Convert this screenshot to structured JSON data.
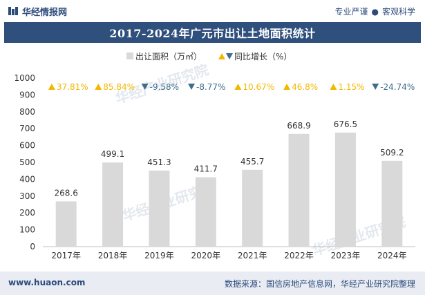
{
  "header": {
    "brand": "华经情报网",
    "tagline_left": "专业严谨",
    "tagline_right": "客观科学"
  },
  "footer": {
    "site": "www.huaon.com",
    "source": "数据来源：国信房地产信息网，华经产业研究院整理"
  },
  "watermark": "华经产业研究院",
  "colors": {
    "bar": "#d9d9d9",
    "up": "#f2b800",
    "down": "#3f6e8c",
    "title_bg": "#2f4f7c",
    "accent": "#2c4a7a"
  },
  "chart_data": {
    "type": "bar",
    "title": "2017-2024年广元市出让土地面积统计",
    "legend": {
      "bar_label": "出让面积（万㎡）",
      "growth_label": "同比增长（%）",
      "position": "top"
    },
    "categories": [
      "2017年",
      "2018年",
      "2019年",
      "2020年",
      "2021年",
      "2022年",
      "2023年",
      "2024年"
    ],
    "values": [
      268.6,
      499.1,
      451.3,
      411.7,
      455.7,
      668.9,
      676.5,
      509.2
    ],
    "value_labels": [
      "268.6",
      "499.1",
      "451.3",
      "411.7",
      "455.7",
      "668.9",
      "676.5",
      "509.2"
    ],
    "growth": [
      37.81,
      85.84,
      -9.58,
      -8.77,
      10.67,
      46.8,
      1.15,
      -24.74
    ],
    "growth_labels": [
      "37.81%",
      "85.84%",
      "-9.58%",
      "-8.77%",
      "10.67%",
      "46.8%",
      "1.15%",
      "-24.74%"
    ],
    "ylim": [
      0,
      1000
    ],
    "yticks": [
      0,
      100,
      200,
      300,
      400,
      500,
      600,
      700,
      800,
      900,
      1000
    ],
    "ytick_labels": [
      "0",
      "100",
      "200",
      "300",
      "400",
      "500",
      "600",
      "700",
      "800",
      "900",
      "1000"
    ],
    "grid": false
  }
}
